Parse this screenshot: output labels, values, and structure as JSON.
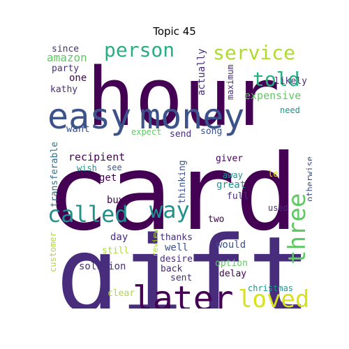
{
  "title": "Topic 45",
  "words": {
    "hour": "hour",
    "card": "card",
    "gift": "gift",
    "money": "money",
    "easy": "easy",
    "later": "later",
    "loved": "loved",
    "called": "called",
    "way": "way",
    "three": "three",
    "person": "person",
    "service": "service",
    "told": "told",
    "expensive": "expensive",
    "since": "since",
    "amazon": "amazon",
    "party": "party",
    "one": "one",
    "kathy": "kathy",
    "actually": "actually",
    "maximum": "maximum",
    "likely": "likely",
    "need": "need",
    "want": "want",
    "expect": "expect",
    "send": "send",
    "song": "song",
    "transferable": "transferable",
    "recipient": "recipient",
    "wish": "wish",
    "see": "see",
    "get": "get",
    "thinking": "thinking",
    "giver": "giver",
    "away": "away",
    "le": "le",
    "otherwise": "otherwise",
    "great": "great",
    "full": "full",
    "buy": "buy",
    "used": "used",
    "two": "two",
    "day": "day",
    "review": "review",
    "thanks": "thanks",
    "well": "well",
    "would": "would",
    "customer": "customer",
    "still": "still",
    "desire": "desire",
    "solution": "solution",
    "option": "option",
    "back": "back",
    "delay": "delay",
    "sent": "sent",
    "clear": "clear",
    "christmas": "christmas"
  },
  "palette": {
    "dark_purple": "#440154",
    "purple": "#472d7b",
    "indigo": "#3b528b",
    "blue": "#2c728e",
    "teal": "#21918c",
    "green_teal": "#28ae80",
    "green": "#5ec962",
    "lime": "#addc30",
    "yellow": "#d8e219"
  }
}
